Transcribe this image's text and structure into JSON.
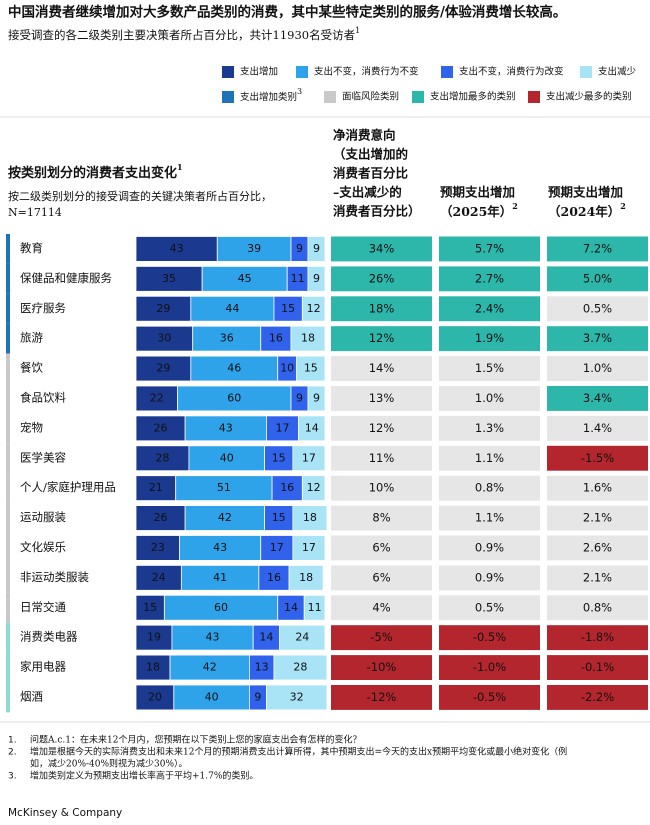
{
  "title": "中国消费者继续增加对大多数产品类别的消费，其中某些特定类别的服务/体验消费增长较高。",
  "subtitle": {
    "text": "接受调查的各二级类别主要决策者所占百分比，共计11930名受访者",
    "note": "1"
  },
  "legend": [
    {
      "label": "支出增加",
      "color": "#1b3a8f"
    },
    {
      "label": "支出不变，消费行为不变",
      "color": "#2fa3ea"
    },
    {
      "label": "支出不变，消费行为改变",
      "color": "#3162ec"
    },
    {
      "label": "支出减少",
      "color": "#a9e3f6"
    },
    {
      "label": "支出增加类别",
      "note": "3",
      "color": "#1f74b8"
    },
    {
      "label": "面临风险类别",
      "color": "#c9c9c9"
    },
    {
      "label": "支出增加最多的类别",
      "color": "#2cb7aa"
    },
    {
      "label": "支出减少最多的类别",
      "color": "#b3262e"
    }
  ],
  "header": {
    "left_title": "按类别划分的消费者支出变化",
    "left_title_note": "1",
    "left_subtitle": [
      "按二级类别划分的接受调查的关键决策者所占百分比，",
      "N=17114"
    ],
    "net": [
      "净消费意向",
      "（支出增加的",
      "消费者百分比",
      "–支出减少的",
      "消费者百分比）"
    ],
    "y2025": [
      "预期支出增加",
      "（2025年）"
    ],
    "y2025_note": "2",
    "y2024": [
      "预期支出增加",
      "（2024年）"
    ],
    "y2024_note": "2"
  },
  "rows": [
    {
      "category": "教育",
      "marker": "#1f74b8",
      "shares": [
        43,
        39,
        9,
        9
      ],
      "net": {
        "text": "34%",
        "color": "#2cb7aa"
      },
      "y2025": {
        "text": "5.7%",
        "color": "#2cb7aa"
      },
      "y2024": {
        "text": "7.2%",
        "color": "#2cb7aa"
      }
    },
    {
      "category": "保健品和健康服务",
      "marker": "#1f74b8",
      "shares": [
        35,
        45,
        11,
        9
      ],
      "net": {
        "text": "26%",
        "color": "#2cb7aa"
      },
      "y2025": {
        "text": "2.7%",
        "color": "#2cb7aa"
      },
      "y2024": {
        "text": "5.0%",
        "color": "#2cb7aa"
      }
    },
    {
      "category": "医疗服务",
      "marker": "#1f74b8",
      "shares": [
        29,
        44,
        15,
        12
      ],
      "net": {
        "text": "18%",
        "color": "#2cb7aa"
      },
      "y2025": {
        "text": "2.4%",
        "color": "#2cb7aa"
      },
      "y2024": {
        "text": "0.5%",
        "color": "#e6e6e6"
      }
    },
    {
      "category": "旅游",
      "marker": "#1f74b8",
      "shares": [
        30,
        36,
        16,
        18
      ],
      "net": {
        "text": "12%",
        "color": "#2cb7aa"
      },
      "y2025": {
        "text": "1.9%",
        "color": "#2cb7aa"
      },
      "y2024": {
        "text": "3.7%",
        "color": "#2cb7aa"
      }
    },
    {
      "category": "餐饮",
      "marker": "#c9c9c9",
      "shares": [
        29,
        46,
        10,
        15
      ],
      "net": {
        "text": "14%",
        "color": "#e6e6e6"
      },
      "y2025": {
        "text": "1.5%",
        "color": "#e6e6e6"
      },
      "y2024": {
        "text": "1.0%",
        "color": "#e6e6e6"
      }
    },
    {
      "category": "食品饮料",
      "marker": "#c9c9c9",
      "shares": [
        22,
        60,
        9,
        9
      ],
      "net": {
        "text": "13%",
        "color": "#e6e6e6"
      },
      "y2025": {
        "text": "1.0%",
        "color": "#e6e6e6"
      },
      "y2024": {
        "text": "3.4%",
        "color": "#2cb7aa"
      }
    },
    {
      "category": "宠物",
      "marker": "#c9c9c9",
      "shares": [
        26,
        43,
        17,
        14
      ],
      "net": {
        "text": "12%",
        "color": "#e6e6e6"
      },
      "y2025": {
        "text": "1.3%",
        "color": "#e6e6e6"
      },
      "y2024": {
        "text": "1.4%",
        "color": "#e6e6e6"
      }
    },
    {
      "category": "医学美容",
      "marker": "#c9c9c9",
      "shares": [
        28,
        40,
        15,
        17
      ],
      "net": {
        "text": "11%",
        "color": "#e6e6e6"
      },
      "y2025": {
        "text": "1.1%",
        "color": "#e6e6e6"
      },
      "y2024": {
        "text": "-1.5%",
        "color": "#b3262e"
      }
    },
    {
      "category": "个人/家庭护理用品",
      "marker": "#c9c9c9",
      "shares": [
        21,
        51,
        16,
        12
      ],
      "net": {
        "text": "10%",
        "color": "#e6e6e6"
      },
      "y2025": {
        "text": "0.8%",
        "color": "#e6e6e6"
      },
      "y2024": {
        "text": "1.6%",
        "color": "#e6e6e6"
      }
    },
    {
      "category": "运动服装",
      "marker": "#c9c9c9",
      "shares": [
        26,
        42,
        15,
        18
      ],
      "net": {
        "text": "8%",
        "color": "#e6e6e6"
      },
      "y2025": {
        "text": "1.1%",
        "color": "#e6e6e6"
      },
      "y2024": {
        "text": "2.1%",
        "color": "#e6e6e6"
      }
    },
    {
      "category": "文化娱乐",
      "marker": "#c9c9c9",
      "shares": [
        23,
        43,
        17,
        17
      ],
      "net": {
        "text": "6%",
        "color": "#e6e6e6"
      },
      "y2025": {
        "text": "0.9%",
        "color": "#e6e6e6"
      },
      "y2024": {
        "text": "2.6%",
        "color": "#e6e6e6"
      }
    },
    {
      "category": "非运动类服装",
      "marker": "#c9c9c9",
      "shares": [
        24,
        41,
        16,
        18
      ],
      "net": {
        "text": "6%",
        "color": "#e6e6e6"
      },
      "y2025": {
        "text": "0.9%",
        "color": "#e6e6e6"
      },
      "y2024": {
        "text": "2.1%",
        "color": "#e6e6e6"
      }
    },
    {
      "category": "日常交通",
      "marker": "#c9c9c9",
      "shares": [
        15,
        60,
        14,
        11
      ],
      "net": {
        "text": "4%",
        "color": "#e6e6e6"
      },
      "y2025": {
        "text": "0.5%",
        "color": "#e6e6e6"
      },
      "y2024": {
        "text": "0.8%",
        "color": "#e6e6e6"
      }
    },
    {
      "category": "消费类电器",
      "marker": "#8edbd3",
      "shares": [
        19,
        43,
        14,
        24
      ],
      "net": {
        "text": "-5%",
        "color": "#b3262e"
      },
      "y2025": {
        "text": "-0.5%",
        "color": "#b3262e"
      },
      "y2024": {
        "text": "-1.8%",
        "color": "#b3262e"
      }
    },
    {
      "category": "家用电器",
      "marker": "#8edbd3",
      "shares": [
        18,
        42,
        13,
        28
      ],
      "net": {
        "text": "-10%",
        "color": "#b3262e"
      },
      "y2025": {
        "text": "-1.0%",
        "color": "#b3262e"
      },
      "y2024": {
        "text": "-0.1%",
        "color": "#b3262e"
      }
    },
    {
      "category": "烟酒",
      "marker": "#8edbd3",
      "shares": [
        20,
        40,
        9,
        32
      ],
      "net": {
        "text": "-12%",
        "color": "#b3262e"
      },
      "y2025": {
        "text": "-0.5%",
        "color": "#b3262e"
      },
      "y2024": {
        "text": "-2.2%",
        "color": "#b3262e"
      }
    }
  ],
  "footnotes": [
    {
      "num": "1.",
      "lines": [
        "问题A.c.1：在未来12个月内，您预期在以下类别上您的家庭支出会有怎样的变化？"
      ]
    },
    {
      "num": "2.",
      "lines": [
        "增加是根据今天的实际消费支出和未来12个月的预期消费支出计算所得，其中预期支出=今天的支出x预期平均变化或最小绝对变化（例",
        "如，减少20%-40%则视为减少30%）。"
      ]
    },
    {
      "num": "3.",
      "lines": [
        "增加类别定义为预期支出增长率高于平均+1.7%的类别。"
      ]
    }
  ],
  "brand": "McKinsey & Company"
}
